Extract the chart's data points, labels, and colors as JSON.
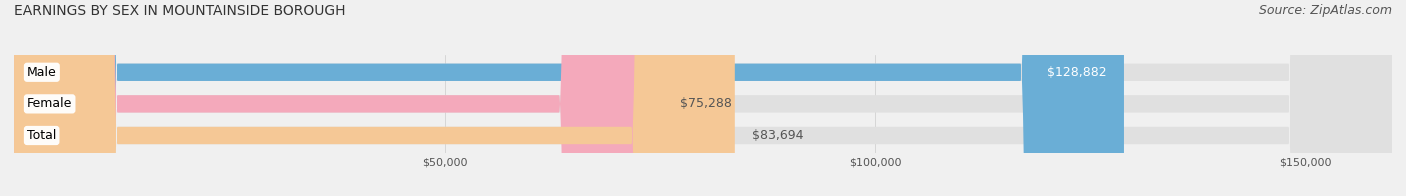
{
  "title": "EARNINGS BY SEX IN MOUNTAINSIDE BOROUGH",
  "source": "Source: ZipAtlas.com",
  "categories": [
    "Male",
    "Female",
    "Total"
  ],
  "values": [
    128882,
    75288,
    83694
  ],
  "bar_colors": [
    "#6aaed6",
    "#f4a9bb",
    "#f5c896"
  ],
  "label_colors": [
    "white",
    "#555555",
    "#555555"
  ],
  "label_inside": [
    true,
    false,
    false
  ],
  "label_texts": [
    "$128,882",
    "$75,288",
    "$83,694"
  ],
  "background_color": "#f0f0f0",
  "bar_bg_color": "#e0e0e0",
  "xlim": [
    0,
    160000
  ],
  "xticks": [
    50000,
    100000,
    150000
  ],
  "tick_labels": [
    "$50,000",
    "$100,000",
    "$150,000"
  ],
  "title_fontsize": 10,
  "source_fontsize": 9,
  "bar_label_fontsize": 9,
  "category_fontsize": 9,
  "figsize": [
    14.06,
    1.96
  ],
  "dpi": 100
}
